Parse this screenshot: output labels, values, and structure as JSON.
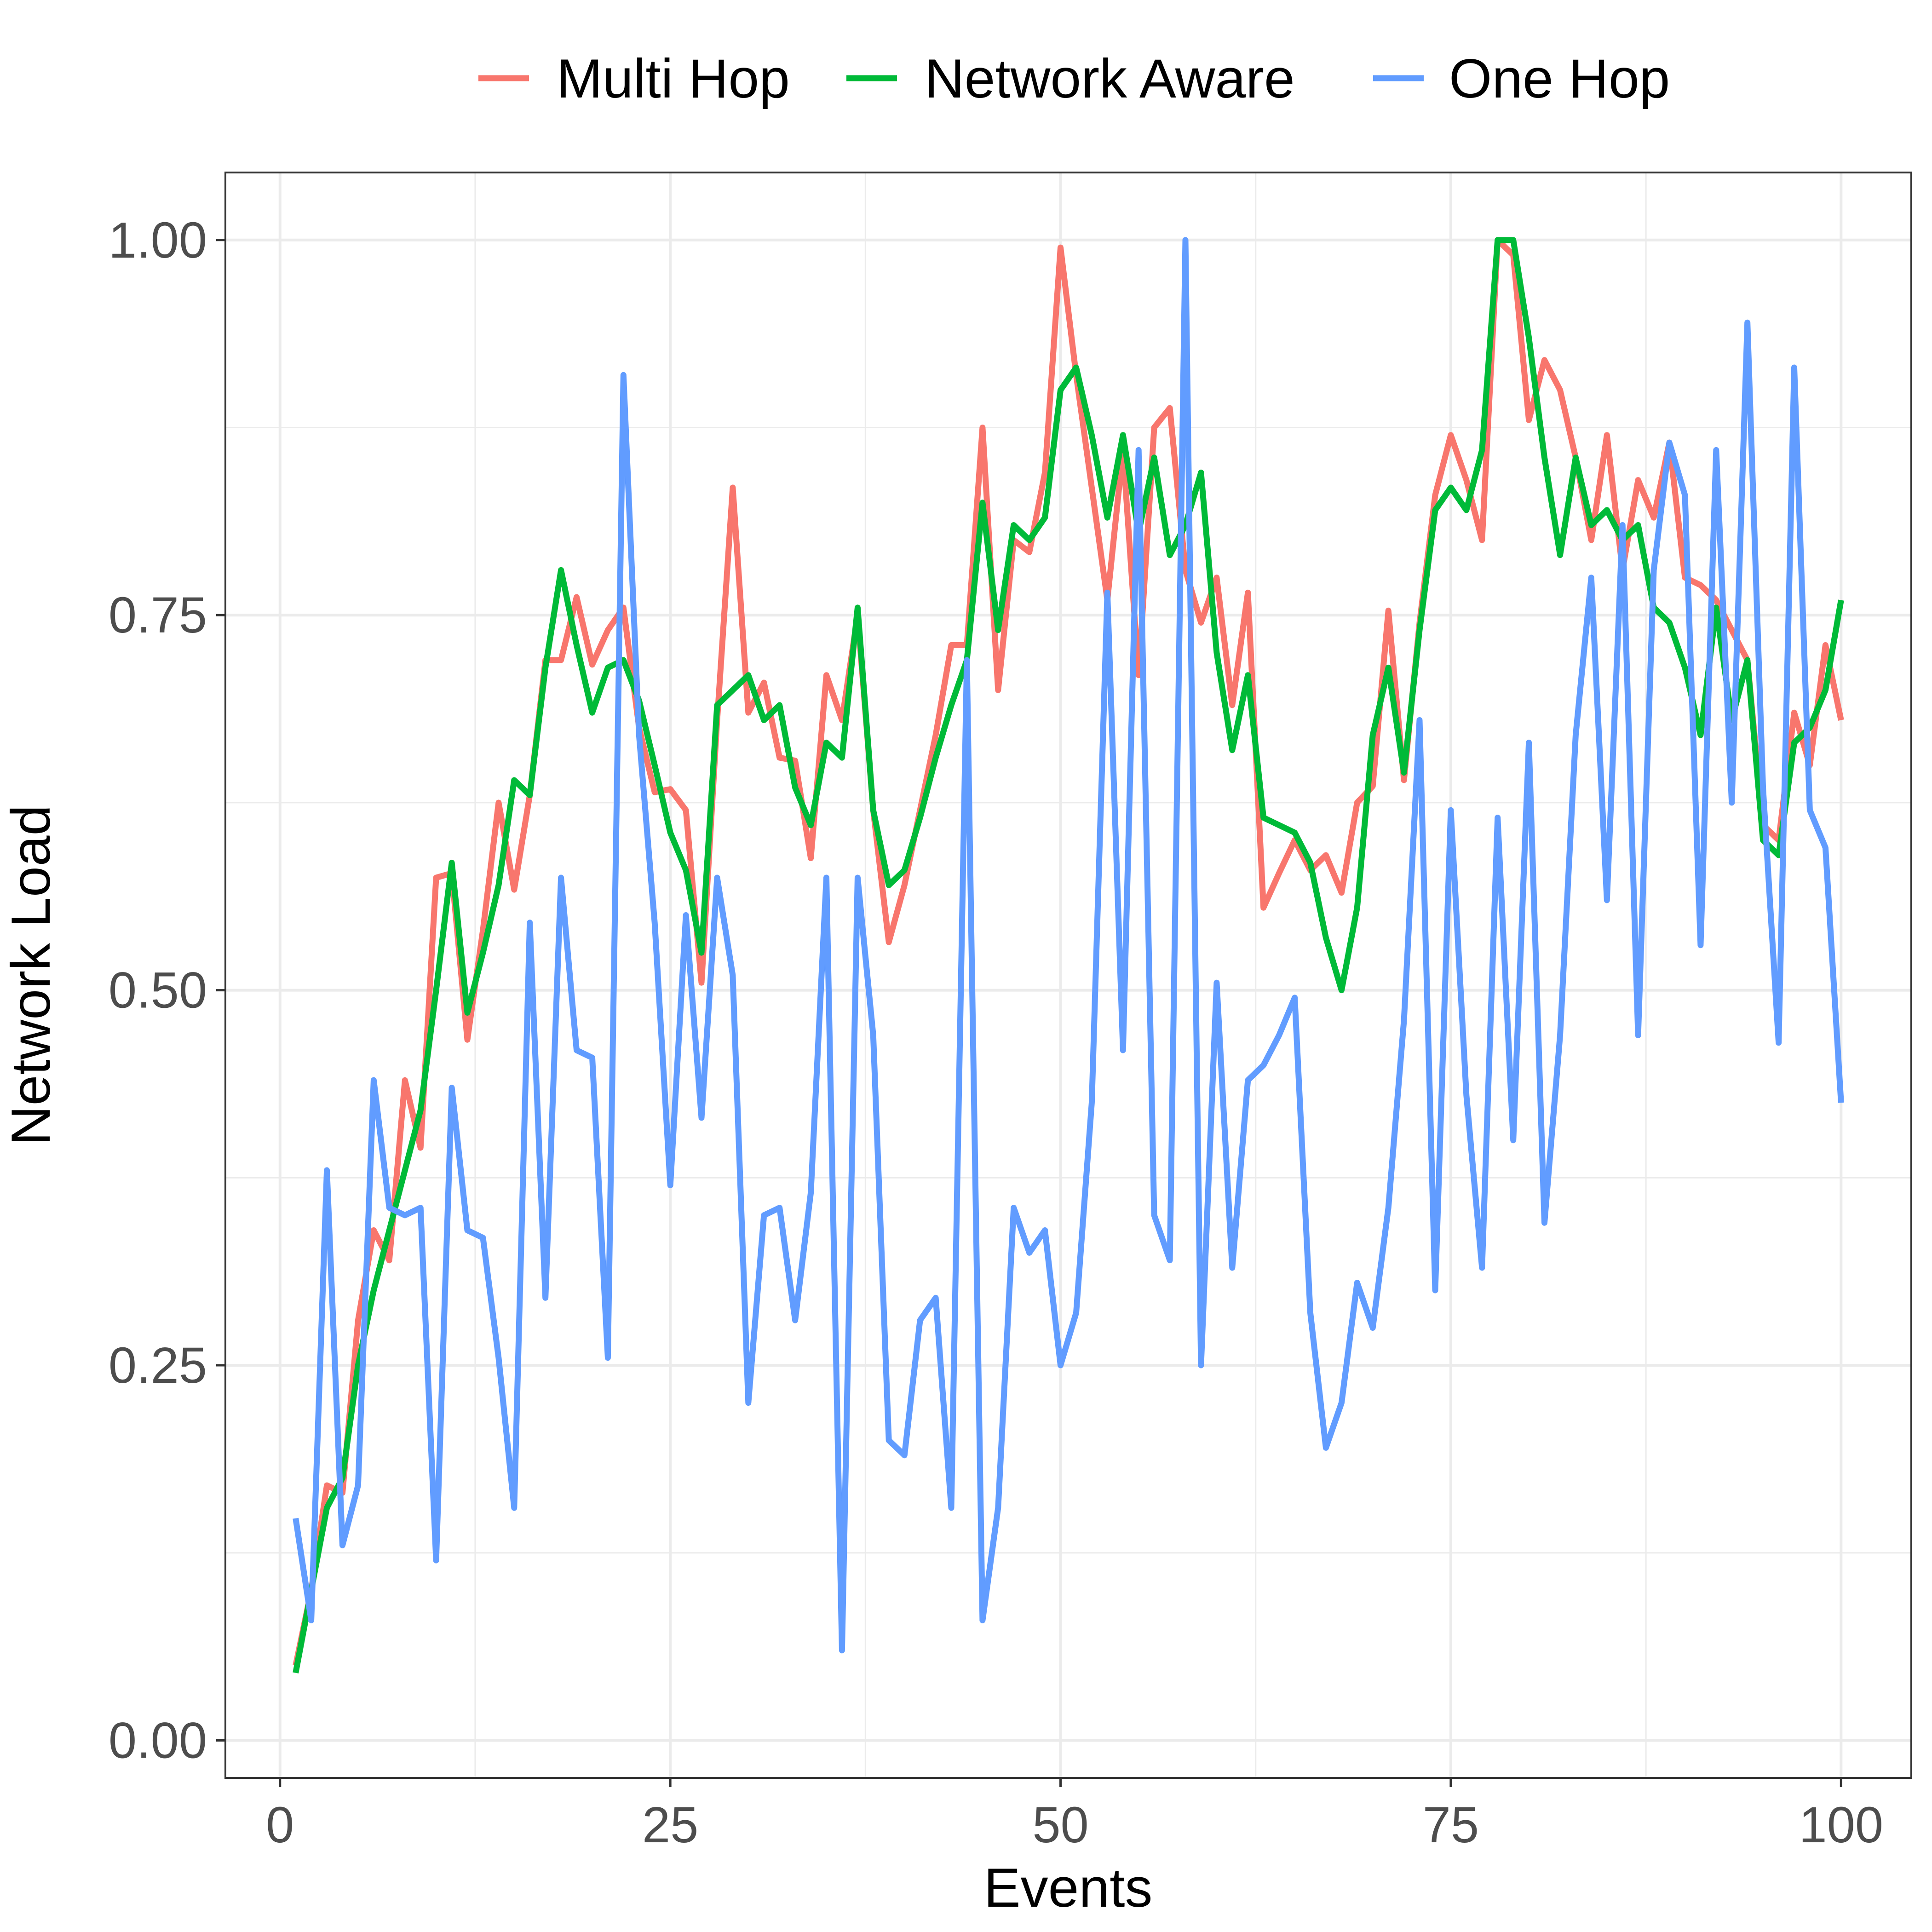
{
  "chart_data": {
    "type": "line",
    "xlabel": "Events",
    "ylabel": "Network Load",
    "xlim": [
      -3.5,
      104.5
    ],
    "ylim": [
      -0.025,
      1.045
    ],
    "x_ticks": [
      0,
      25,
      50,
      75,
      100
    ],
    "x_tick_labels": [
      "0",
      "25",
      "50",
      "75",
      "100"
    ],
    "y_ticks": [
      0,
      0.25,
      0.5,
      0.75,
      1
    ],
    "y_tick_labels": [
      "0.00",
      "0.25",
      "0.50",
      "0.75",
      "1.00"
    ],
    "grid": true,
    "legend_position": "top",
    "x": [
      1,
      2,
      3,
      4,
      5,
      6,
      7,
      8,
      9,
      10,
      11,
      12,
      13,
      14,
      15,
      16,
      17,
      18,
      19,
      20,
      21,
      22,
      23,
      24,
      25,
      26,
      27,
      28,
      29,
      30,
      31,
      32,
      33,
      34,
      35,
      36,
      37,
      38,
      39,
      40,
      41,
      42,
      43,
      44,
      45,
      46,
      47,
      48,
      49,
      50,
      51,
      52,
      53,
      54,
      55,
      56,
      57,
      58,
      59,
      60,
      61,
      62,
      63,
      64,
      65,
      66,
      67,
      68,
      69,
      70,
      71,
      72,
      73,
      74,
      75,
      76,
      77,
      78,
      79,
      80,
      81,
      82,
      83,
      84,
      85,
      86,
      87,
      88,
      89,
      90,
      91,
      92,
      93,
      94,
      95,
      96,
      97,
      98,
      99,
      100
    ],
    "series": [
      {
        "name": "Multi Hop",
        "color": "#F8766D",
        "values": [
          0.05,
          0.1,
          0.17,
          0.165,
          0.28,
          0.34,
          0.32,
          0.44,
          0.395,
          0.575,
          0.578,
          0.467,
          0.54,
          0.625,
          0.567,
          0.63,
          0.72,
          0.72,
          0.762,
          0.717,
          0.74,
          0.755,
          0.675,
          0.632,
          0.634,
          0.62,
          0.505,
          0.68,
          0.835,
          0.685,
          0.705,
          0.655,
          0.653,
          0.588,
          0.71,
          0.68,
          0.75,
          0.62,
          0.532,
          0.57,
          0.62,
          0.67,
          0.73,
          0.73,
          0.875,
          0.7,
          0.8,
          0.792,
          0.845,
          0.995,
          0.91,
          0.835,
          0.76,
          0.86,
          0.71,
          0.875,
          0.888,
          0.78,
          0.745,
          0.775,
          0.69,
          0.765,
          0.555,
          0.578,
          0.6,
          0.58,
          0.59,
          0.565,
          0.625,
          0.636,
          0.753,
          0.64,
          0.745,
          0.83,
          0.87,
          0.84,
          0.8,
          1.0,
          0.99,
          0.88,
          0.92,
          0.9,
          0.855,
          0.8,
          0.87,
          0.78,
          0.84,
          0.815,
          0.865,
          0.775,
          0.77,
          0.76,
          0.74,
          0.72,
          0.61,
          0.6,
          0.685,
          0.65,
          0.73,
          0.68
        ]
      },
      {
        "name": "Network Aware",
        "color": "#00BA38",
        "values": [
          0.045,
          0.1,
          0.155,
          0.175,
          0.25,
          0.3,
          0.34,
          0.38,
          0.42,
          0.5,
          0.585,
          0.485,
          0.525,
          0.57,
          0.64,
          0.63,
          0.715,
          0.78,
          0.73,
          0.685,
          0.715,
          0.72,
          0.693,
          0.65,
          0.605,
          0.58,
          0.525,
          0.69,
          0.7,
          0.71,
          0.68,
          0.69,
          0.635,
          0.61,
          0.665,
          0.655,
          0.755,
          0.62,
          0.57,
          0.58,
          0.615,
          0.655,
          0.69,
          0.72,
          0.825,
          0.74,
          0.81,
          0.8,
          0.815,
          0.9,
          0.915,
          0.87,
          0.815,
          0.87,
          0.805,
          0.855,
          0.79,
          0.81,
          0.845,
          0.725,
          0.66,
          0.71,
          0.615,
          0.61,
          0.605,
          0.585,
          0.535,
          0.5,
          0.555,
          0.67,
          0.715,
          0.645,
          0.74,
          0.82,
          0.835,
          0.82,
          0.86,
          1.0,
          1.0,
          0.935,
          0.855,
          0.79,
          0.855,
          0.81,
          0.82,
          0.8,
          0.81,
          0.755,
          0.745,
          0.715,
          0.67,
          0.755,
          0.68,
          0.72,
          0.6,
          0.59,
          0.665,
          0.675,
          0.7,
          0.76
        ]
      },
      {
        "name": "One Hop",
        "color": "#619CFF",
        "values": [
          0.148,
          0.08,
          0.38,
          0.13,
          0.17,
          0.44,
          0.355,
          0.35,
          0.355,
          0.12,
          0.435,
          0.34,
          0.335,
          0.255,
          0.155,
          0.545,
          0.295,
          0.575,
          0.46,
          0.455,
          0.255,
          0.91,
          0.67,
          0.545,
          0.37,
          0.55,
          0.415,
          0.575,
          0.51,
          0.225,
          0.35,
          0.355,
          0.28,
          0.365,
          0.575,
          0.06,
          0.575,
          0.47,
          0.2,
          0.19,
          0.28,
          0.295,
          0.155,
          0.72,
          0.08,
          0.155,
          0.355,
          0.325,
          0.34,
          0.25,
          0.285,
          0.425,
          0.765,
          0.46,
          0.86,
          0.35,
          0.32,
          1.0,
          0.25,
          0.505,
          0.315,
          0.44,
          0.45,
          0.47,
          0.495,
          0.285,
          0.195,
          0.225,
          0.305,
          0.275,
          0.355,
          0.48,
          0.68,
          0.3,
          0.62,
          0.43,
          0.315,
          0.615,
          0.4,
          0.665,
          0.345,
          0.47,
          0.67,
          0.775,
          0.56,
          0.81,
          0.47,
          0.78,
          0.865,
          0.83,
          0.53,
          0.86,
          0.625,
          0.945,
          0.635,
          0.465,
          0.915,
          0.62,
          0.595,
          0.425
        ]
      }
    ]
  },
  "legend": {
    "items": [
      {
        "label": "Multi Hop"
      },
      {
        "label": "Network Aware"
      },
      {
        "label": "One Hop"
      }
    ]
  }
}
